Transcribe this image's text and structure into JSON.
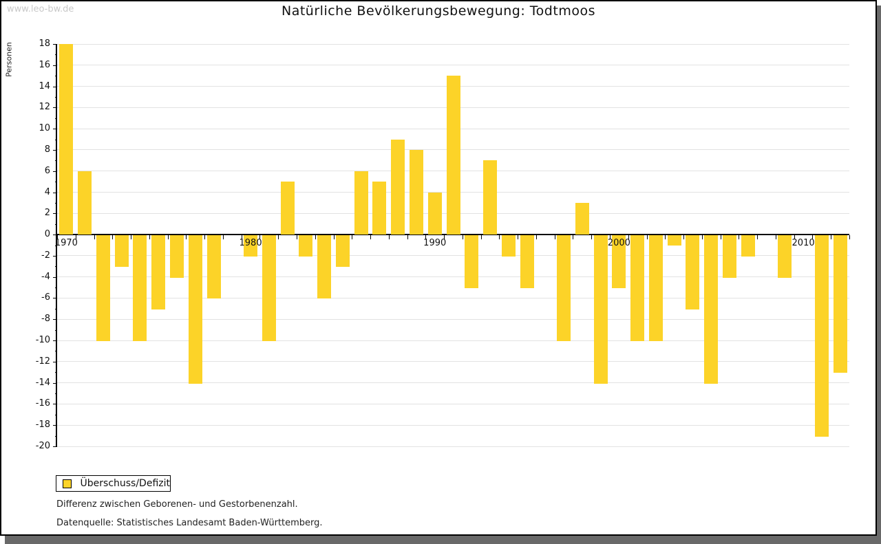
{
  "watermark": "www.leo-bw.de",
  "title": "Natürliche Bevölkerungsbewegung: Todtmoos",
  "legend": {
    "label": "Überschuss/Defizit"
  },
  "notes": {
    "line1": "Differenz zwischen Geborenen- und Gestorbenenzahl.",
    "line2": "Datenquelle: Statistisches Landesamt Baden-Württemberg."
  },
  "colors": {
    "bar": "#fcd328",
    "grid": "#e2e2e2",
    "axis": "#000000",
    "shadow": "#696969",
    "watermark": "#c9c9c9"
  },
  "chart_data": {
    "type": "bar",
    "title": "Natürliche Bevölkerungsbewegung: Todtmoos",
    "xlabel": "",
    "ylabel": "Personen",
    "ylim": [
      -20,
      18
    ],
    "y_tick_step": 2,
    "grid": true,
    "legend_position": "bottom-left",
    "legend_entries": [
      "Überschuss/Defizit"
    ],
    "x_axis_labeled_years": [
      1970,
      1980,
      1990,
      2000,
      2010
    ],
    "series": [
      {
        "name": "Überschuss/Defizit",
        "years": [
          1970,
          1971,
          1972,
          1973,
          1974,
          1975,
          1976,
          1977,
          1978,
          1979,
          1980,
          1981,
          1982,
          1983,
          1984,
          1985,
          1986,
          1987,
          1988,
          1989,
          1990,
          1991,
          1992,
          1993,
          1994,
          1995,
          1996,
          1997,
          1998,
          1999,
          2000,
          2001,
          2002,
          2003,
          2004,
          2005,
          2006,
          2007,
          2008,
          2009,
          2010,
          2011,
          2012
        ],
        "values": [
          18,
          6,
          -10,
          -3,
          -10,
          -7,
          -4,
          -14,
          -6,
          0,
          -2,
          -10,
          5,
          -2,
          -6,
          -3,
          6,
          5,
          9,
          8,
          4,
          15,
          -5,
          7,
          -2,
          -5,
          0,
          -10,
          3,
          -14,
          -5,
          -10,
          -10,
          -1,
          -7,
          -14,
          -4,
          -2,
          0,
          -4,
          0,
          -19,
          -13
        ]
      }
    ]
  }
}
